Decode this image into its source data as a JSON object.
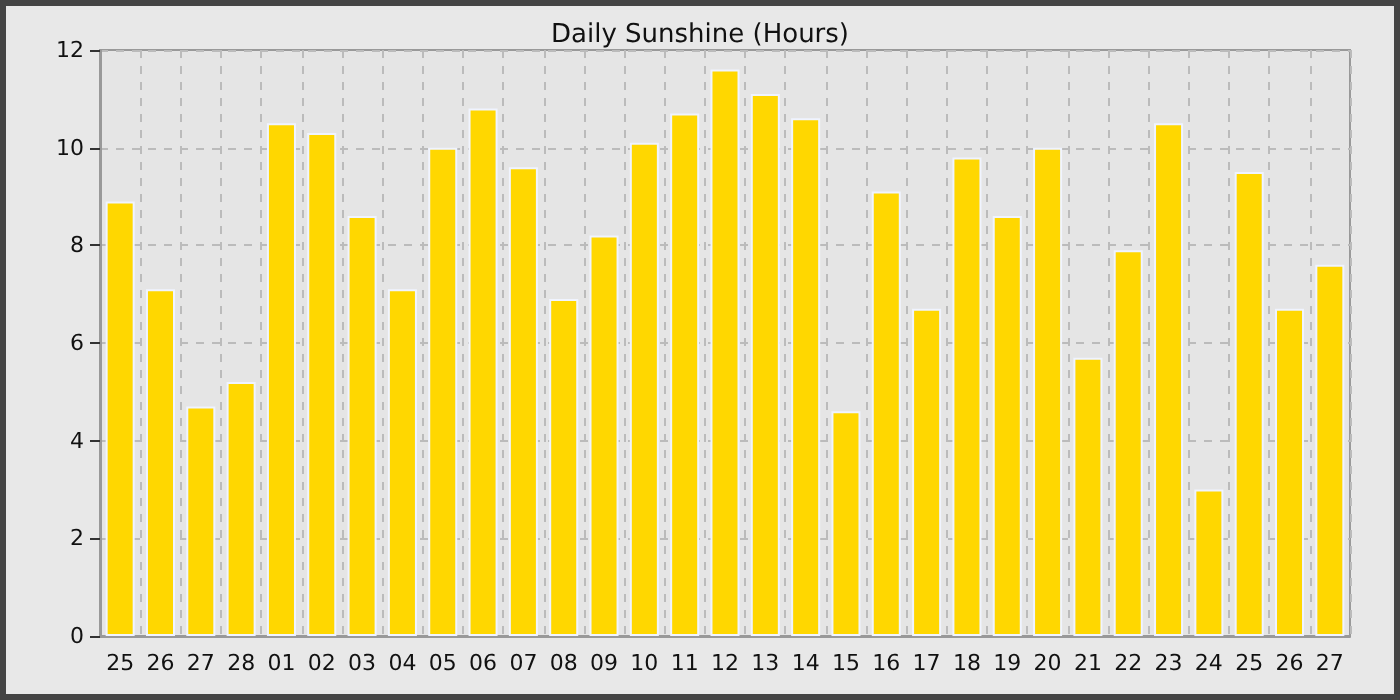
{
  "chart_data": {
    "type": "bar",
    "title": "Daily Sunshine (Hours)",
    "categories": [
      "25",
      "26",
      "27",
      "28",
      "01",
      "02",
      "03",
      "04",
      "05",
      "06",
      "07",
      "08",
      "09",
      "10",
      "11",
      "12",
      "13",
      "14",
      "15",
      "16",
      "17",
      "18",
      "19",
      "20",
      "21",
      "22",
      "23",
      "24",
      "25",
      "26",
      "27"
    ],
    "values": [
      8.9,
      7.1,
      4.7,
      5.2,
      10.5,
      10.3,
      8.6,
      7.1,
      10.0,
      10.8,
      9.6,
      6.9,
      8.2,
      10.1,
      10.7,
      11.6,
      11.1,
      10.6,
      4.6,
      9.1,
      6.7,
      9.8,
      8.6,
      10.0,
      5.7,
      7.9,
      10.5,
      3.0,
      9.5,
      6.7,
      7.6
    ],
    "color": "#ffd700",
    "ylim": [
      0,
      12
    ],
    "yticks": [
      0,
      2,
      4,
      6,
      8,
      10,
      12
    ],
    "grid": true
  }
}
